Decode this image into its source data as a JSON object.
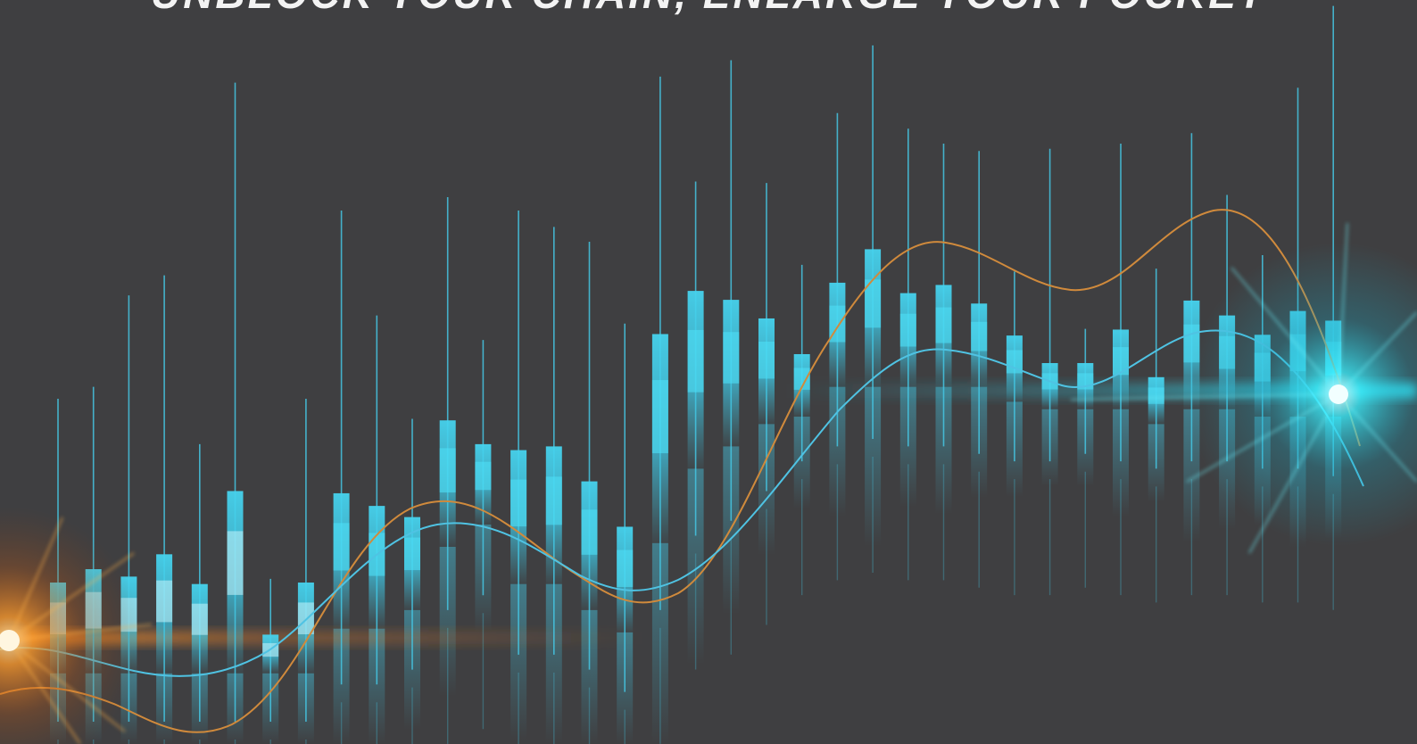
{
  "headline": "UNBLOCK YOUR CHAIN, ENLARGE YOUR POCKET",
  "colors": {
    "background": "#3f3f41",
    "candle": "#3fd0ec",
    "candle_light": "#c9f4fb",
    "line_blue": "#4fc3e3",
    "line_orange": "#d08a3c",
    "flare_orange": "#ff9a2a",
    "flare_cyan": "#39f0ff"
  },
  "candles": [
    {
      "wt": 0.536,
      "bt": 0.783,
      "bb": 0.905,
      "wb": 0.97
    },
    {
      "wt": 0.52,
      "bt": 0.765,
      "bb": 0.905,
      "wb": 0.97
    },
    {
      "wt": 0.397,
      "bt": 0.775,
      "bb": 0.905,
      "wb": 0.97
    },
    {
      "wt": 0.37,
      "bt": 0.745,
      "bb": 0.905,
      "wb": 0.97
    },
    {
      "wt": 0.597,
      "bt": 0.785,
      "bb": 0.905,
      "wb": 0.97
    },
    {
      "wt": 0.111,
      "bt": 0.66,
      "bb": 0.905,
      "wb": 0.97
    },
    {
      "wt": 0.778,
      "bt": 0.853,
      "bb": 0.905,
      "wb": 0.97
    },
    {
      "wt": 0.536,
      "bt": 0.783,
      "bb": 0.905,
      "wb": 0.97
    },
    {
      "wt": 0.283,
      "bt": 0.663,
      "bb": 0.845,
      "wb": 0.92
    },
    {
      "wt": 0.424,
      "bt": 0.68,
      "bb": 0.845,
      "wb": 0.92
    },
    {
      "wt": 0.563,
      "bt": 0.695,
      "bb": 0.82,
      "wb": 0.9
    },
    {
      "wt": 0.265,
      "bt": 0.565,
      "bb": 0.735,
      "wb": 0.82
    },
    {
      "wt": 0.457,
      "bt": 0.597,
      "bb": 0.705,
      "wb": 0.8
    },
    {
      "wt": 0.283,
      "bt": 0.605,
      "bb": 0.785,
      "wb": 0.88
    },
    {
      "wt": 0.305,
      "bt": 0.6,
      "bb": 0.785,
      "wb": 0.88
    },
    {
      "wt": 0.325,
      "bt": 0.647,
      "bb": 0.82,
      "wb": 0.9
    },
    {
      "wt": 0.435,
      "bt": 0.708,
      "bb": 0.85,
      "wb": 0.93
    },
    {
      "wt": 0.103,
      "bt": 0.449,
      "bb": 0.73,
      "wb": 0.82
    },
    {
      "wt": 0.244,
      "bt": 0.391,
      "bb": 0.63,
      "wb": 0.72
    },
    {
      "wt": 0.081,
      "bt": 0.403,
      "bb": 0.6,
      "wb": 0.7
    },
    {
      "wt": 0.246,
      "bt": 0.428,
      "bb": 0.57,
      "wb": 0.66
    },
    {
      "wt": 0.356,
      "bt": 0.476,
      "bb": 0.56,
      "wb": 0.62
    },
    {
      "wt": 0.152,
      "bt": 0.38,
      "bb": 0.52,
      "wb": 0.6
    },
    {
      "wt": 0.061,
      "bt": 0.335,
      "bb": 0.52,
      "wb": 0.59
    },
    {
      "wt": 0.173,
      "bt": 0.394,
      "bb": 0.52,
      "wb": 0.6
    },
    {
      "wt": 0.193,
      "bt": 0.383,
      "bb": 0.52,
      "wb": 0.6
    },
    {
      "wt": 0.203,
      "bt": 0.408,
      "bb": 0.52,
      "wb": 0.61
    },
    {
      "wt": 0.365,
      "bt": 0.451,
      "bb": 0.54,
      "wb": 0.62
    },
    {
      "wt": 0.2,
      "bt": 0.488,
      "bb": 0.55,
      "wb": 0.62
    },
    {
      "wt": 0.442,
      "bt": 0.488,
      "bb": 0.55,
      "wb": 0.61
    },
    {
      "wt": 0.193,
      "bt": 0.443,
      "bb": 0.55,
      "wb": 0.62
    },
    {
      "wt": 0.361,
      "bt": 0.507,
      "bb": 0.57,
      "wb": 0.63
    },
    {
      "wt": 0.179,
      "bt": 0.404,
      "bb": 0.55,
      "wb": 0.62
    },
    {
      "wt": 0.262,
      "bt": 0.424,
      "bb": 0.55,
      "wb": 0.62
    },
    {
      "wt": 0.343,
      "bt": 0.45,
      "bb": 0.56,
      "wb": 0.63
    },
    {
      "wt": 0.118,
      "bt": 0.418,
      "bb": 0.56,
      "wb": 0.63
    },
    {
      "wt": 0.008,
      "bt": 0.431,
      "bb": 0.56,
      "wb": 0.64
    }
  ]
}
